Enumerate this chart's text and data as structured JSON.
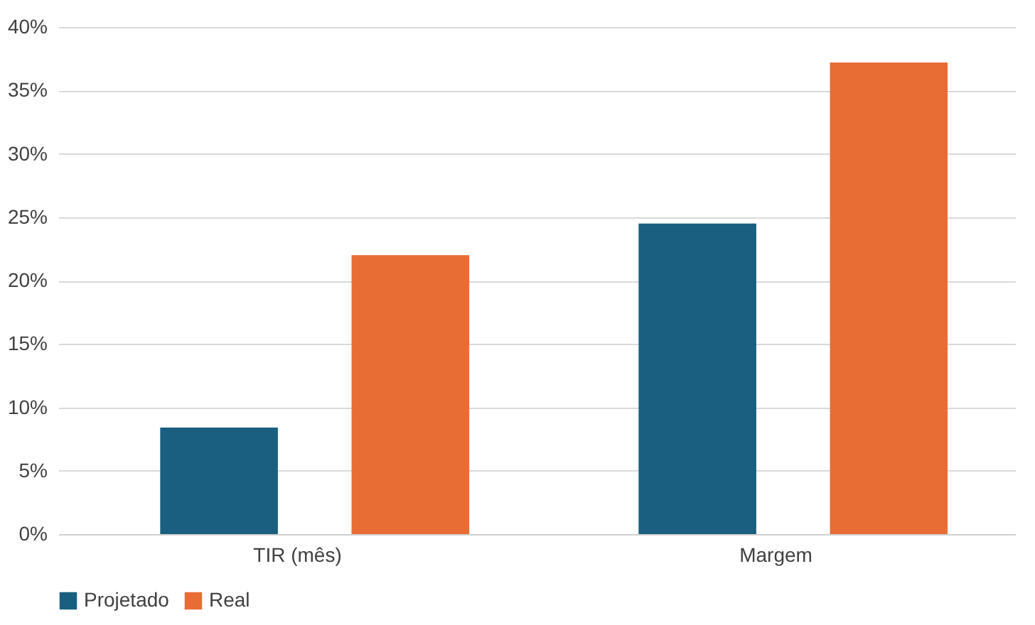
{
  "chart_data": {
    "type": "bar",
    "categories": [
      "TIR (mês)",
      "Margem"
    ],
    "series": [
      {
        "name": "Projetado",
        "color": "#1a5f80",
        "values": [
          8.4,
          24.5
        ]
      },
      {
        "name": "Real",
        "color": "#e86d35",
        "values": [
          22,
          37.2
        ]
      }
    ],
    "ylim": [
      0,
      40
    ],
    "yticks": [
      {
        "value": 0,
        "label": "0%"
      },
      {
        "value": 5,
        "label": "5%"
      },
      {
        "value": 10,
        "label": "10%"
      },
      {
        "value": 15,
        "label": "15%"
      },
      {
        "value": 20,
        "label": "20%"
      },
      {
        "value": 25,
        "label": "25%"
      },
      {
        "value": 30,
        "label": "30%"
      },
      {
        "value": 35,
        "label": "35%"
      },
      {
        "value": 40,
        "label": "40%"
      }
    ],
    "grid": "y",
    "legend": "bottom"
  }
}
